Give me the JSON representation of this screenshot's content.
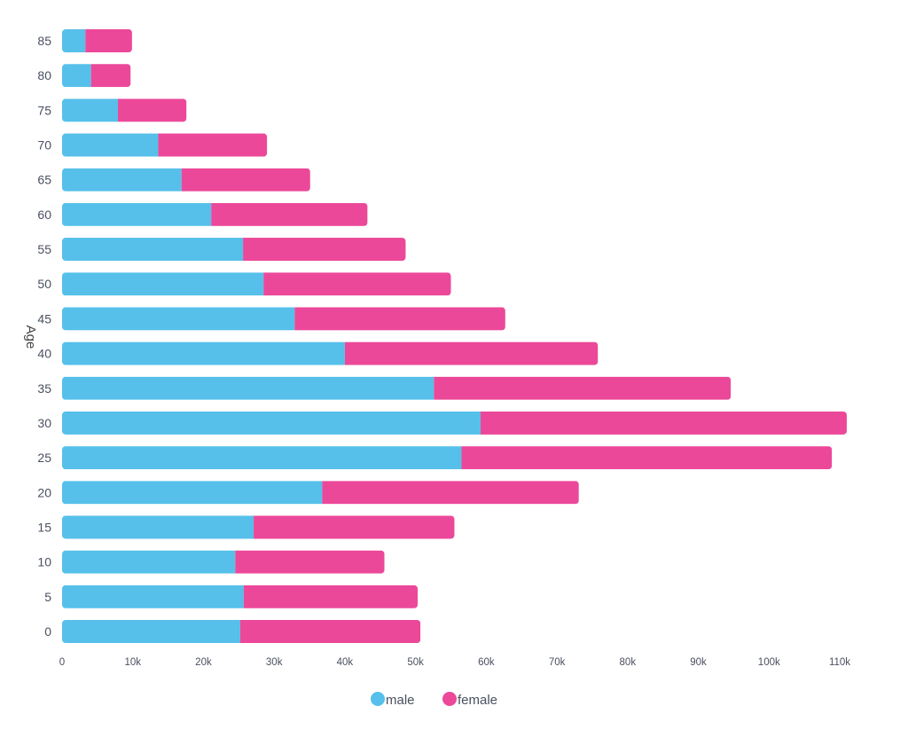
{
  "chart_data": {
    "type": "bar",
    "orientation": "horizontal",
    "stacked": true,
    "title": "",
    "xlabel": "",
    "ylabel": "Age",
    "xlim": [
      0,
      110000
    ],
    "x_ticks": [
      "0",
      "10k",
      "20k",
      "30k",
      "40k",
      "50k",
      "60k",
      "70k",
      "80k",
      "90k",
      "100k",
      "110k"
    ],
    "x_tick_values": [
      0,
      10000,
      20000,
      30000,
      40000,
      50000,
      60000,
      70000,
      80000,
      90000,
      100000,
      110000
    ],
    "categories": [
      "0",
      "5",
      "10",
      "15",
      "20",
      "25",
      "30",
      "35",
      "40",
      "45",
      "50",
      "55",
      "60",
      "65",
      "70",
      "75",
      "80",
      "85"
    ],
    "series": [
      {
        "name": "male",
        "color": "#56c0ea",
        "values": [
          25200,
          25700,
          24500,
          27100,
          36800,
          56500,
          59200,
          52600,
          40000,
          32900,
          28500,
          25600,
          21100,
          16900,
          13600,
          7900,
          4100,
          3300
        ]
      },
      {
        "name": "female",
        "color": "#ec4899",
        "values": [
          25500,
          24600,
          21100,
          28400,
          36300,
          52400,
          51800,
          42000,
          35800,
          29800,
          26500,
          23000,
          22100,
          18200,
          15400,
          9700,
          5600,
          6600
        ]
      }
    ],
    "legend_position": "bottom-center",
    "grid": false
  }
}
